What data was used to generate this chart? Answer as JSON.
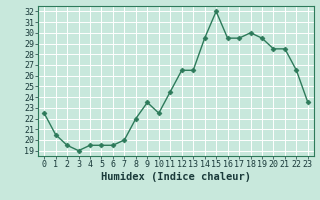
{
  "x": [
    0,
    1,
    2,
    3,
    4,
    5,
    6,
    7,
    8,
    9,
    10,
    11,
    12,
    13,
    14,
    15,
    16,
    17,
    18,
    19,
    20,
    21,
    22,
    23
  ],
  "y": [
    22.5,
    20.5,
    19.5,
    19.0,
    19.5,
    19.5,
    19.5,
    20.0,
    22.0,
    23.5,
    22.5,
    24.5,
    26.5,
    26.5,
    29.5,
    32.0,
    29.5,
    29.5,
    30.0,
    29.5,
    28.5,
    28.5,
    26.5,
    23.5
  ],
  "xlabel": "Humidex (Indice chaleur)",
  "xlim": [
    -0.5,
    23.5
  ],
  "ylim": [
    18.5,
    32.5
  ],
  "yticks": [
    19,
    20,
    21,
    22,
    23,
    24,
    25,
    26,
    27,
    28,
    29,
    30,
    31,
    32
  ],
  "xticks": [
    0,
    1,
    2,
    3,
    4,
    5,
    6,
    7,
    8,
    9,
    10,
    11,
    12,
    13,
    14,
    15,
    16,
    17,
    18,
    19,
    20,
    21,
    22,
    23
  ],
  "line_color": "#2d7a5a",
  "marker": "D",
  "marker_size": 2.5,
  "bg_color": "#c8e8dc",
  "grid_color": "#ffffff",
  "axis_color": "#2d7a5a",
  "label_color": "#1a3a3a",
  "xlabel_fontsize": 7.5,
  "tick_fontsize": 6.0,
  "linewidth": 1.0
}
